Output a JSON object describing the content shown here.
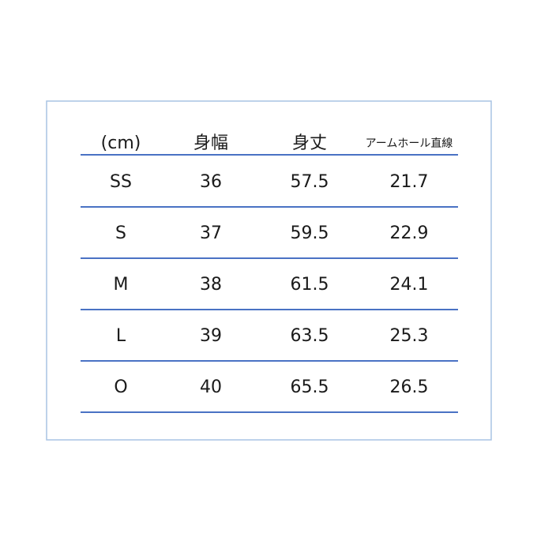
{
  "table": {
    "headers": [
      "(cm)",
      "身幅",
      "身丈",
      "アームホール直線"
    ],
    "rows": [
      [
        "SS",
        "36",
        "57.5",
        "21.7"
      ],
      [
        "S",
        "37",
        "59.5",
        "22.9"
      ],
      [
        "M",
        "38",
        "61.5",
        "24.1"
      ],
      [
        "L",
        "39",
        "63.5",
        "25.3"
      ],
      [
        "O",
        "40",
        "65.5",
        "26.5"
      ]
    ]
  }
}
